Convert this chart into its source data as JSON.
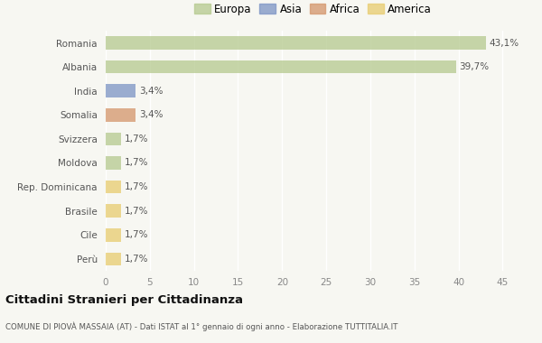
{
  "countries": [
    "Romania",
    "Albania",
    "India",
    "Somalia",
    "Svizzera",
    "Moldova",
    "Rep. Dominicana",
    "Brasile",
    "Cile",
    "Perù"
  ],
  "values": [
    43.1,
    39.7,
    3.4,
    3.4,
    1.7,
    1.7,
    1.7,
    1.7,
    1.7,
    1.7
  ],
  "labels": [
    "43,1%",
    "39,7%",
    "3,4%",
    "3,4%",
    "1,7%",
    "1,7%",
    "1,7%",
    "1,7%",
    "1,7%",
    "1,7%"
  ],
  "colors": [
    "#b5c98e",
    "#b5c98e",
    "#7b93c4",
    "#d4956a",
    "#b5c98e",
    "#b5c98e",
    "#e8cc6e",
    "#e8cc6e",
    "#e8cc6e",
    "#e8cc6e"
  ],
  "legend_labels": [
    "Europa",
    "Asia",
    "Africa",
    "America"
  ],
  "legend_colors": [
    "#b5c98e",
    "#7b93c4",
    "#d4956a",
    "#e8cc6e"
  ],
  "title": "Cittadini Stranieri per Cittadinanza",
  "subtitle": "COMUNE DI PIOVÀ MASSAIA (AT) - Dati ISTAT al 1° gennaio di ogni anno - Elaborazione TUTTITALIA.IT",
  "xlim": [
    0,
    47
  ],
  "xticks": [
    0,
    5,
    10,
    15,
    20,
    25,
    30,
    35,
    40,
    45
  ],
  "background_color": "#f7f7f2"
}
